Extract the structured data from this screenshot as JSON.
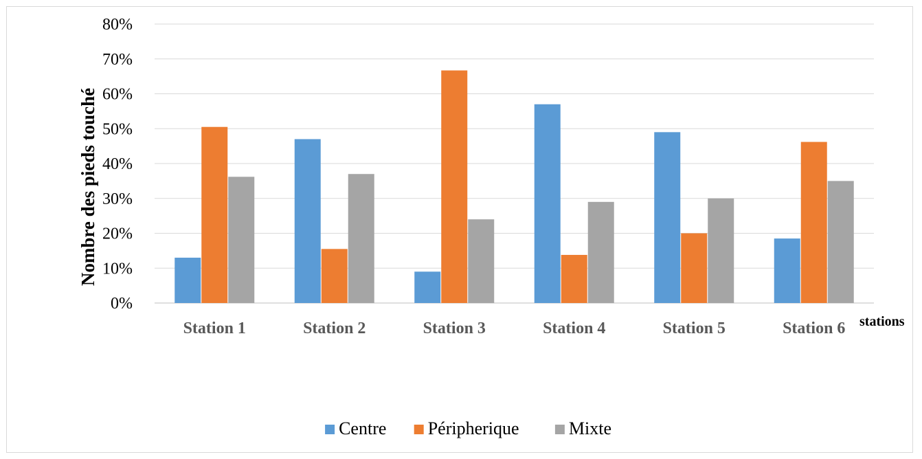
{
  "chart_data": {
    "type": "bar",
    "title": "",
    "xlabel": "stations",
    "ylabel": "Nombre  des pieds touché",
    "ylim": [
      0,
      0.8
    ],
    "yticks": [
      0,
      0.1,
      0.2,
      0.3,
      0.4,
      0.5,
      0.6,
      0.7,
      0.8
    ],
    "ytick_labels": [
      "0%",
      "10%",
      "20%",
      "30%",
      "40%",
      "50%",
      "60%",
      "70%",
      "80%"
    ],
    "y_format": "percent",
    "grid": true,
    "legend_position": "bottom",
    "categories": [
      "Station 1",
      "Station 2",
      "Station 3",
      "Station 4",
      "Station 5",
      "Station 6"
    ],
    "series": [
      {
        "name": "Centre",
        "color": "#5b9bd5",
        "values": [
          0.13,
          0.47,
          0.09,
          0.57,
          0.49,
          0.185
        ]
      },
      {
        "name": "Péripherique",
        "color": "#ed7d31",
        "values": [
          0.505,
          0.155,
          0.667,
          0.138,
          0.2,
          0.462
        ]
      },
      {
        "name": "Mixte",
        "color": "#a5a5a5",
        "values": [
          0.362,
          0.37,
          0.24,
          0.29,
          0.3,
          0.35
        ]
      }
    ]
  }
}
